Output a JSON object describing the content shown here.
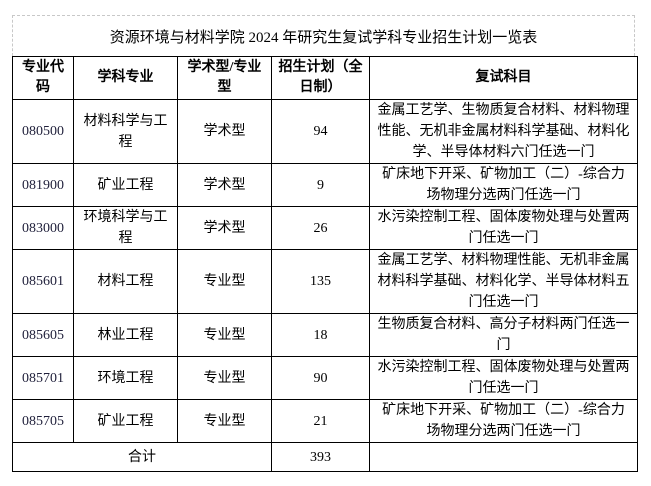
{
  "title": "资源环境与材料学院 2024 年研究生复试学科专业招生计划一览表",
  "headers": [
    "专业代码",
    "学科专业",
    "学术型/专业型",
    "招生计划（全日制）",
    "复试科目"
  ],
  "rows": [
    {
      "code": "080500",
      "major": "材料科学与工程",
      "type": "学术型",
      "plan": "94",
      "subjects": "金属工艺学、生物质复合材料、材料物理性能、无机非金属材料科学基础、材料化学、半导体材料六门任选一门"
    },
    {
      "code": "081900",
      "major": "矿业工程",
      "type": "学术型",
      "plan": "9",
      "subjects": "矿床地下开采、矿物加工（二）-综合力场物理分选两门任选一门"
    },
    {
      "code": "083000",
      "major": "环境科学与工程",
      "type": "学术型",
      "plan": "26",
      "subjects": "水污染控制工程、固体废物处理与处置两门任选一门"
    },
    {
      "code": "085601",
      "major": "材料工程",
      "type": "专业型",
      "plan": "135",
      "subjects": "金属工艺学、材料物理性能、无机非金属材料科学基础、材料化学、半导体材料五门任选一门"
    },
    {
      "code": "085605",
      "major": "林业工程",
      "type": "专业型",
      "plan": "18",
      "subjects": "生物质复合材料、高分子材料两门任选一门"
    },
    {
      "code": "085701",
      "major": "环境工程",
      "type": "专业型",
      "plan": "90",
      "subjects": "水污染控制工程、固体废物处理与处置两门任选一门"
    },
    {
      "code": "085705",
      "major": "矿业工程",
      "type": "专业型",
      "plan": "21",
      "subjects": "矿床地下开采、矿物加工（二）-综合力场物理分选两门任选一门"
    }
  ],
  "total": {
    "label": "合计",
    "plan": "393"
  }
}
